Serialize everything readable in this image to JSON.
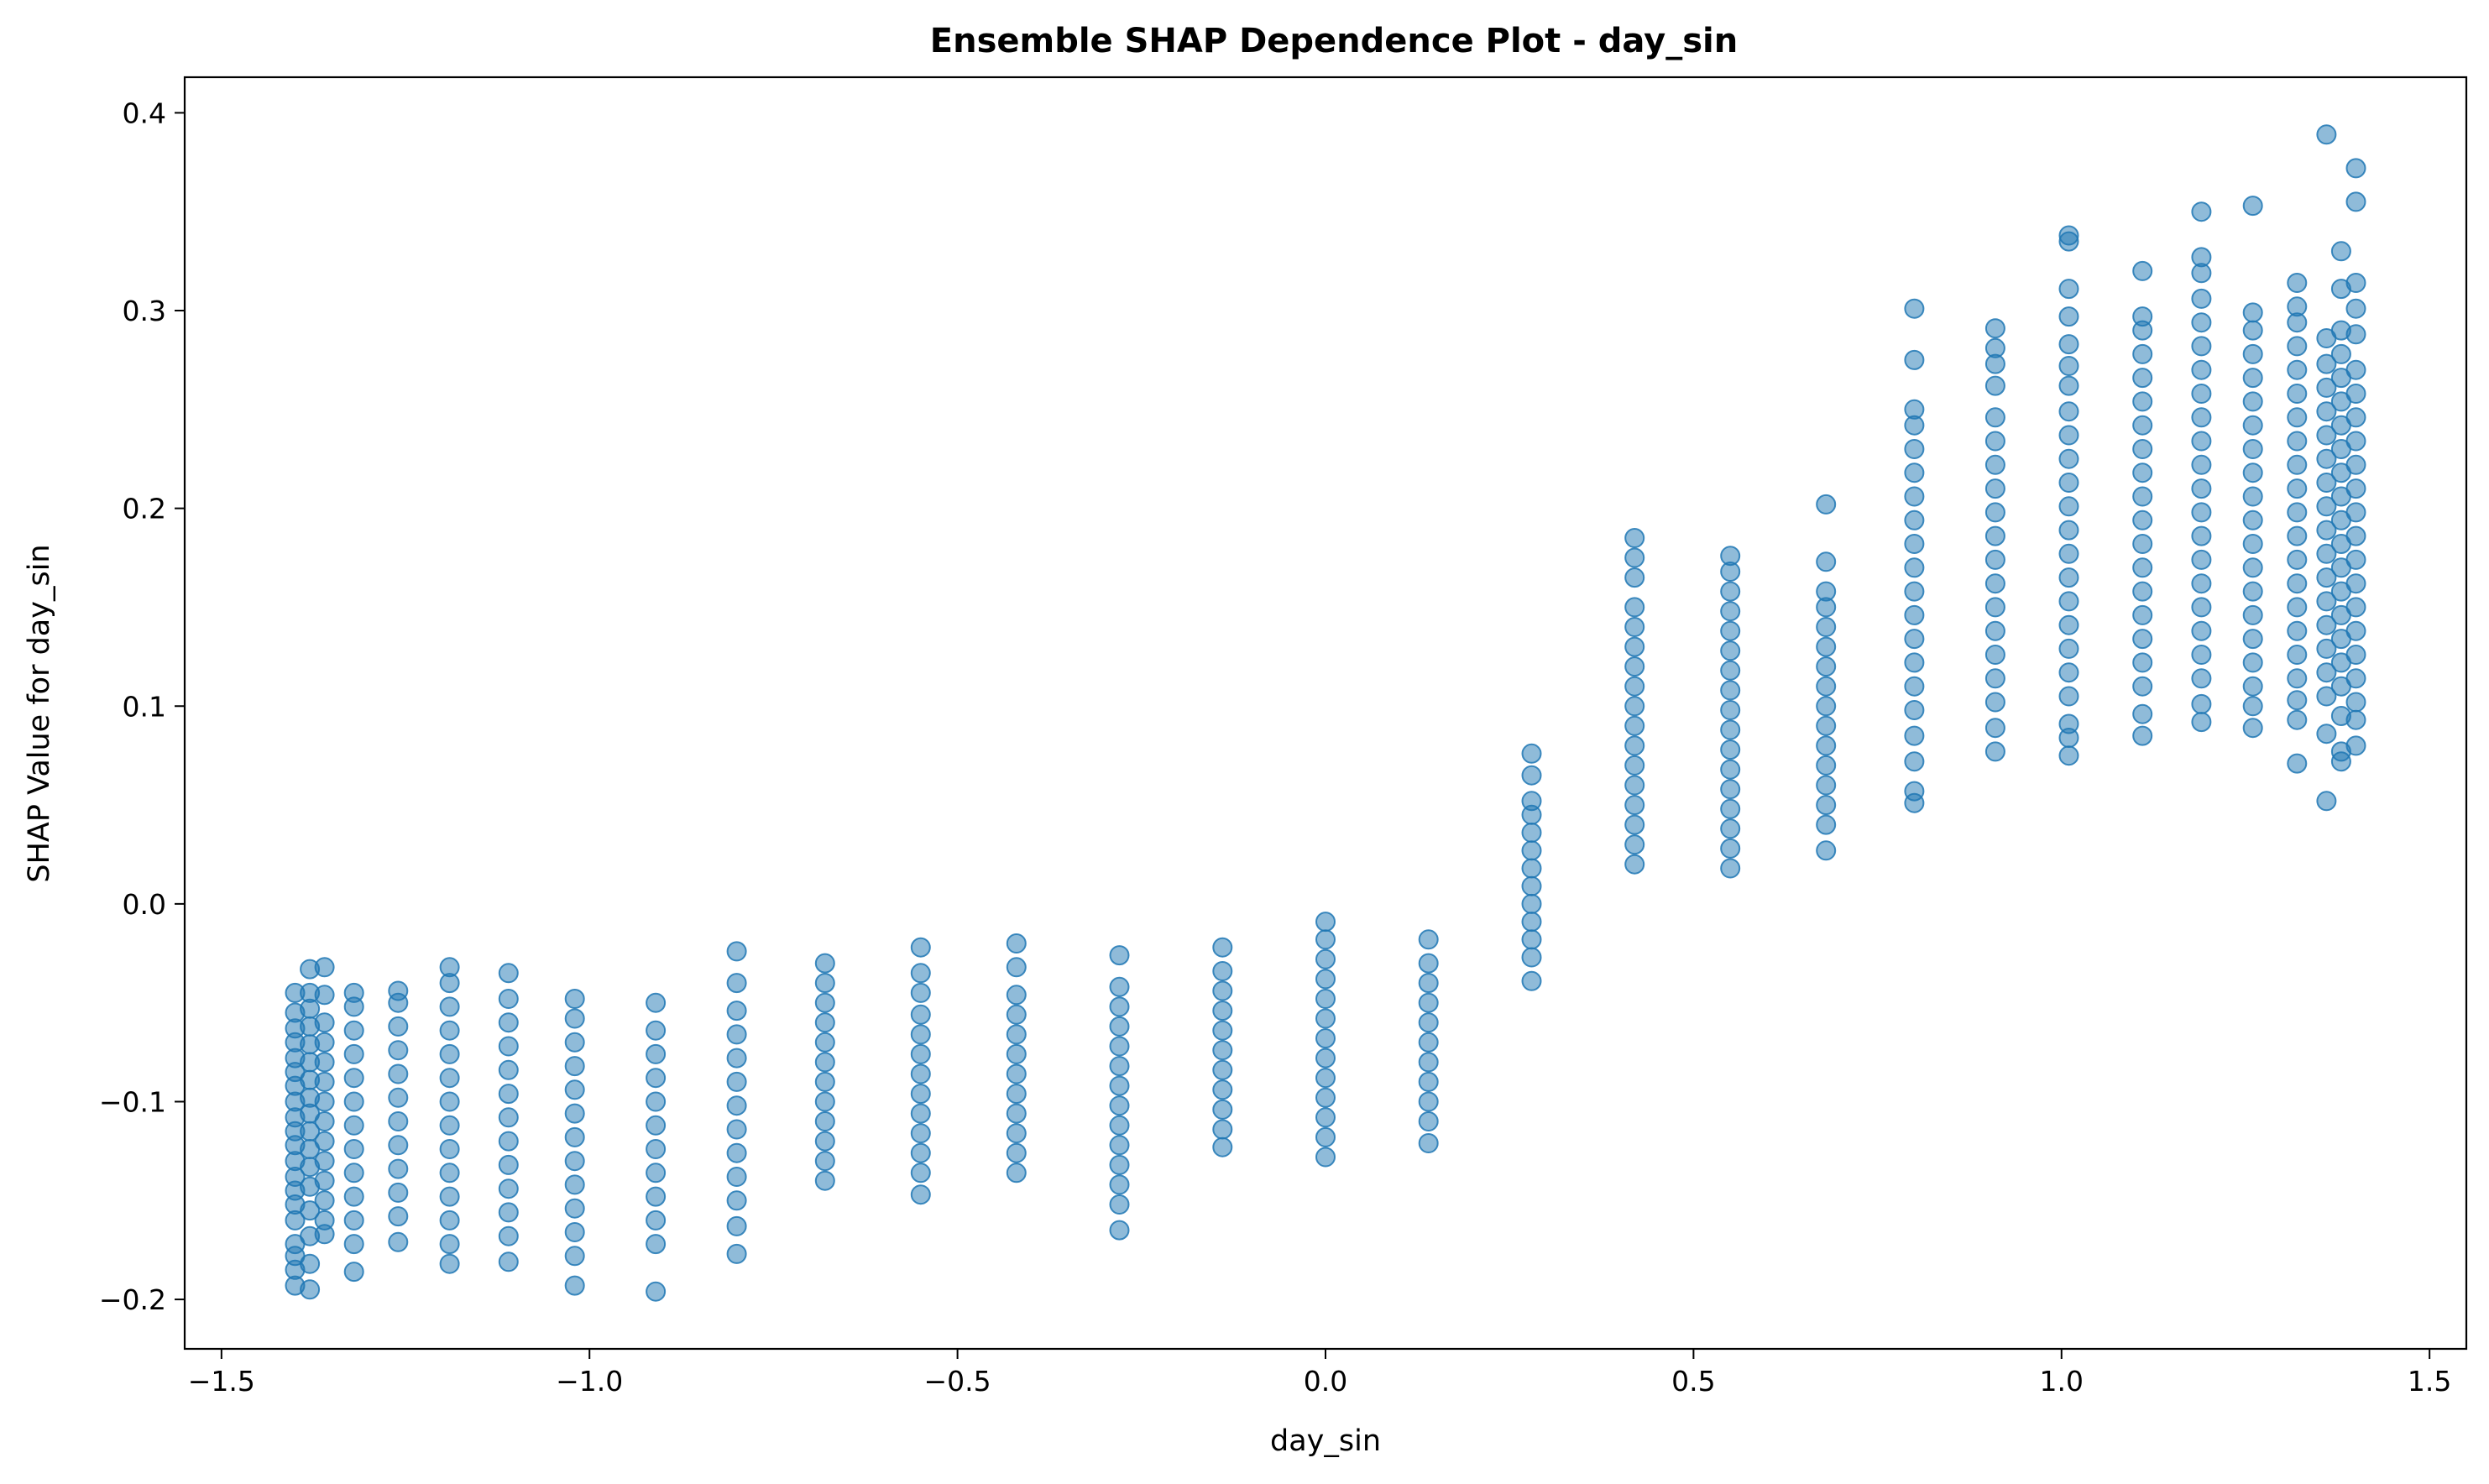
{
  "chart_data": {
    "type": "scatter",
    "title": "Ensemble SHAP Dependence Plot - day_sin",
    "xlabel": "day_sin",
    "ylabel": "SHAP Value for day_sin",
    "xlim": [
      -1.55,
      1.55
    ],
    "ylim": [
      -0.225,
      0.418
    ],
    "xticks": [
      -1.5,
      -1.0,
      -0.5,
      0.0,
      0.5,
      1.0,
      1.5
    ],
    "xtick_labels": [
      "−1.5",
      "−1.0",
      "−0.5",
      "0.0",
      "0.5",
      "1.0",
      "1.5"
    ],
    "yticks": [
      -0.2,
      -0.1,
      0.0,
      0.1,
      0.2,
      0.3,
      0.4
    ],
    "ytick_labels": [
      "−0.2",
      "−0.1",
      "0.0",
      "0.1",
      "0.2",
      "0.3",
      "0.4"
    ],
    "grid": false,
    "marker_color": "#1f77b4",
    "marker_alpha": 0.5,
    "columns": [
      {
        "x": -1.4,
        "y": [
          -0.193,
          -0.185,
          -0.178,
          -0.172,
          -0.16,
          -0.152,
          -0.145,
          -0.138,
          -0.13,
          -0.122,
          -0.115,
          -0.108,
          -0.1,
          -0.092,
          -0.085,
          -0.078,
          -0.07,
          -0.063,
          -0.055,
          -0.045
        ]
      },
      {
        "x": -1.38,
        "y": [
          -0.195,
          -0.182,
          -0.168,
          -0.155,
          -0.143,
          -0.133,
          -0.124,
          -0.115,
          -0.106,
          -0.098,
          -0.089,
          -0.08,
          -0.071,
          -0.062,
          -0.053,
          -0.045,
          -0.033
        ]
      },
      {
        "x": -1.36,
        "y": [
          -0.167,
          -0.16,
          -0.15,
          -0.14,
          -0.13,
          -0.12,
          -0.11,
          -0.1,
          -0.09,
          -0.08,
          -0.07,
          -0.06,
          -0.046,
          -0.032
        ]
      },
      {
        "x": -1.32,
        "y": [
          -0.186,
          -0.172,
          -0.16,
          -0.148,
          -0.136,
          -0.124,
          -0.112,
          -0.1,
          -0.088,
          -0.076,
          -0.064,
          -0.052,
          -0.045
        ]
      },
      {
        "x": -1.26,
        "y": [
          -0.171,
          -0.158,
          -0.146,
          -0.134,
          -0.122,
          -0.11,
          -0.098,
          -0.086,
          -0.074,
          -0.062,
          -0.05,
          -0.044
        ]
      },
      {
        "x": -1.19,
        "y": [
          -0.182,
          -0.172,
          -0.16,
          -0.148,
          -0.136,
          -0.124,
          -0.112,
          -0.1,
          -0.088,
          -0.076,
          -0.064,
          -0.052,
          -0.04,
          -0.032
        ]
      },
      {
        "x": -1.11,
        "y": [
          -0.181,
          -0.168,
          -0.156,
          -0.144,
          -0.132,
          -0.12,
          -0.108,
          -0.096,
          -0.084,
          -0.072,
          -0.06,
          -0.048,
          -0.035
        ]
      },
      {
        "x": -1.02,
        "y": [
          -0.193,
          -0.178,
          -0.166,
          -0.154,
          -0.142,
          -0.13,
          -0.118,
          -0.106,
          -0.094,
          -0.082,
          -0.07,
          -0.058,
          -0.048
        ]
      },
      {
        "x": -0.91,
        "y": [
          -0.196,
          -0.172,
          -0.16,
          -0.148,
          -0.136,
          -0.124,
          -0.112,
          -0.1,
          -0.088,
          -0.076,
          -0.064,
          -0.05
        ]
      },
      {
        "x": -0.8,
        "y": [
          -0.177,
          -0.163,
          -0.15,
          -0.138,
          -0.126,
          -0.114,
          -0.102,
          -0.09,
          -0.078,
          -0.066,
          -0.054,
          -0.04,
          -0.024
        ]
      },
      {
        "x": -0.68,
        "y": [
          -0.14,
          -0.13,
          -0.12,
          -0.11,
          -0.1,
          -0.09,
          -0.08,
          -0.07,
          -0.06,
          -0.05,
          -0.04,
          -0.03
        ]
      },
      {
        "x": -0.55,
        "y": [
          -0.147,
          -0.136,
          -0.126,
          -0.116,
          -0.106,
          -0.096,
          -0.086,
          -0.076,
          -0.066,
          -0.056,
          -0.045,
          -0.035,
          -0.022
        ]
      },
      {
        "x": -0.42,
        "y": [
          -0.136,
          -0.126,
          -0.116,
          -0.106,
          -0.096,
          -0.086,
          -0.076,
          -0.066,
          -0.056,
          -0.046,
          -0.032,
          -0.02
        ]
      },
      {
        "x": -0.28,
        "y": [
          -0.165,
          -0.152,
          -0.142,
          -0.132,
          -0.122,
          -0.112,
          -0.102,
          -0.092,
          -0.082,
          -0.072,
          -0.062,
          -0.052,
          -0.042,
          -0.026
        ]
      },
      {
        "x": -0.14,
        "y": [
          -0.123,
          -0.114,
          -0.104,
          -0.094,
          -0.084,
          -0.074,
          -0.064,
          -0.054,
          -0.044,
          -0.034,
          -0.022
        ]
      },
      {
        "x": 0.0,
        "y": [
          -0.128,
          -0.118,
          -0.108,
          -0.098,
          -0.088,
          -0.078,
          -0.068,
          -0.058,
          -0.048,
          -0.038,
          -0.028,
          -0.018,
          -0.009
        ]
      },
      {
        "x": 0.14,
        "y": [
          -0.121,
          -0.11,
          -0.1,
          -0.09,
          -0.08,
          -0.07,
          -0.06,
          -0.05,
          -0.04,
          -0.03,
          -0.018
        ]
      },
      {
        "x": 0.28,
        "y": [
          -0.039,
          -0.027,
          -0.018,
          -0.009,
          0.0,
          0.009,
          0.018,
          0.027,
          0.036,
          0.045,
          0.052,
          0.065,
          0.076
        ]
      },
      {
        "x": 0.42,
        "y": [
          0.02,
          0.03,
          0.04,
          0.05,
          0.06,
          0.07,
          0.08,
          0.09,
          0.1,
          0.11,
          0.12,
          0.13,
          0.14,
          0.15,
          0.165,
          0.175,
          0.185
        ]
      },
      {
        "x": 0.55,
        "y": [
          0.018,
          0.028,
          0.038,
          0.048,
          0.058,
          0.068,
          0.078,
          0.088,
          0.098,
          0.108,
          0.118,
          0.128,
          0.138,
          0.148,
          0.158,
          0.168,
          0.176
        ]
      },
      {
        "x": 0.68,
        "y": [
          0.027,
          0.04,
          0.05,
          0.06,
          0.07,
          0.08,
          0.09,
          0.1,
          0.11,
          0.12,
          0.13,
          0.14,
          0.15,
          0.158,
          0.173,
          0.202
        ]
      },
      {
        "x": 0.8,
        "y": [
          0.051,
          0.057,
          0.072,
          0.085,
          0.098,
          0.11,
          0.122,
          0.134,
          0.146,
          0.158,
          0.17,
          0.182,
          0.194,
          0.206,
          0.218,
          0.23,
          0.242,
          0.25,
          0.275,
          0.301
        ]
      },
      {
        "x": 0.91,
        "y": [
          0.077,
          0.089,
          0.102,
          0.114,
          0.126,
          0.138,
          0.15,
          0.162,
          0.174,
          0.186,
          0.198,
          0.21,
          0.222,
          0.234,
          0.246,
          0.262,
          0.273,
          0.281,
          0.291
        ]
      },
      {
        "x": 1.01,
        "y": [
          0.075,
          0.084,
          0.091,
          0.105,
          0.117,
          0.129,
          0.141,
          0.153,
          0.165,
          0.177,
          0.189,
          0.201,
          0.213,
          0.225,
          0.237,
          0.249,
          0.262,
          0.272,
          0.283,
          0.297,
          0.311,
          0.335,
          0.338
        ]
      },
      {
        "x": 1.11,
        "y": [
          0.085,
          0.096,
          0.11,
          0.122,
          0.134,
          0.146,
          0.158,
          0.17,
          0.182,
          0.194,
          0.206,
          0.218,
          0.23,
          0.242,
          0.254,
          0.266,
          0.278,
          0.29,
          0.297,
          0.32
        ]
      },
      {
        "x": 1.19,
        "y": [
          0.092,
          0.101,
          0.114,
          0.126,
          0.138,
          0.15,
          0.162,
          0.174,
          0.186,
          0.198,
          0.21,
          0.222,
          0.234,
          0.246,
          0.258,
          0.27,
          0.282,
          0.294,
          0.306,
          0.319,
          0.327,
          0.35
        ]
      },
      {
        "x": 1.26,
        "y": [
          0.089,
          0.1,
          0.11,
          0.122,
          0.134,
          0.146,
          0.158,
          0.17,
          0.182,
          0.194,
          0.206,
          0.218,
          0.23,
          0.242,
          0.254,
          0.266,
          0.278,
          0.29,
          0.299,
          0.353
        ]
      },
      {
        "x": 1.32,
        "y": [
          0.071,
          0.093,
          0.103,
          0.114,
          0.126,
          0.138,
          0.15,
          0.162,
          0.174,
          0.186,
          0.198,
          0.21,
          0.222,
          0.234,
          0.246,
          0.258,
          0.27,
          0.282,
          0.294,
          0.302,
          0.314
        ]
      },
      {
        "x": 1.36,
        "y": [
          0.052,
          0.086,
          0.105,
          0.117,
          0.129,
          0.141,
          0.153,
          0.165,
          0.177,
          0.189,
          0.201,
          0.213,
          0.225,
          0.237,
          0.249,
          0.261,
          0.273,
          0.286,
          0.389
        ]
      },
      {
        "x": 1.38,
        "y": [
          0.072,
          0.077,
          0.095,
          0.11,
          0.122,
          0.134,
          0.146,
          0.158,
          0.17,
          0.182,
          0.194,
          0.206,
          0.218,
          0.23,
          0.242,
          0.254,
          0.266,
          0.278,
          0.29,
          0.311,
          0.33
        ]
      },
      {
        "x": 1.4,
        "y": [
          0.08,
          0.093,
          0.102,
          0.114,
          0.126,
          0.138,
          0.15,
          0.162,
          0.174,
          0.186,
          0.198,
          0.21,
          0.222,
          0.234,
          0.246,
          0.258,
          0.27,
          0.288,
          0.301,
          0.314,
          0.355,
          0.372
        ]
      }
    ]
  }
}
